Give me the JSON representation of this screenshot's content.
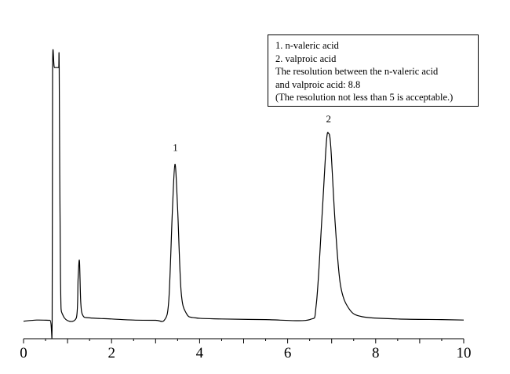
{
  "chart_data": {
    "type": "line",
    "title": "",
    "xlabel": "",
    "ylabel": "",
    "xlim": [
      0,
      10
    ],
    "xticks": [
      0,
      2,
      4,
      6,
      8,
      10
    ],
    "tick_labels": [
      "0",
      "2",
      "4",
      "6",
      "8",
      "10"
    ],
    "y_axis_visible": false,
    "grid": false,
    "line_color": "#000000",
    "series": [
      {
        "x": [
          0.0,
          0.3,
          0.6,
          0.65,
          0.66,
          0.7,
          0.78,
          0.8,
          0.81,
          0.84,
          0.9,
          1.2,
          1.24,
          1.27,
          1.3,
          1.35,
          1.5,
          2.0,
          2.5,
          3.0,
          3.2,
          3.3,
          3.38,
          3.44,
          3.5,
          3.58,
          3.7,
          3.9,
          4.5,
          5.5,
          6.5,
          6.65,
          6.78,
          6.88,
          6.93,
          6.98,
          7.08,
          7.2,
          7.4,
          7.7,
          8.5,
          9.5,
          10.0
        ],
        "y": [
          0.5,
          1.0,
          0.9,
          1.0,
          116,
          116,
          116,
          116,
          116,
          20,
          3,
          2,
          20,
          28,
          9,
          3,
          2,
          1.5,
          1.0,
          0.9,
          1.0,
          10,
          50,
          72,
          52,
          14,
          4,
          2,
          1.5,
          1.2,
          1.2,
          8,
          48,
          82,
          86,
          80,
          45,
          17,
          6,
          2.5,
          1.5,
          1.2,
          1.0
        ]
      }
    ],
    "annotations": [
      {
        "text": "1",
        "x": 3.45,
        "y": 78
      },
      {
        "text": "2",
        "x": 6.93,
        "y": 91
      }
    ],
    "legend": {
      "placement": "top-right",
      "lines": [
        "1.  n-valeric acid",
        "2.  valproic acid",
        "The resolution between the n-valeric acid",
        "and valproic acid: 8.8",
        "(The resolution not less than 5 is acceptable.)"
      ]
    }
  }
}
